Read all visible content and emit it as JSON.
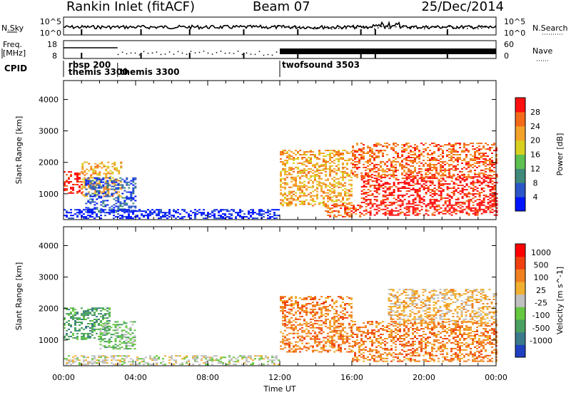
{
  "header": {
    "station": "Rankin Inlet (fitACF)",
    "beam": "Beam 07",
    "date": "25/Dec/2014"
  },
  "noise_panel": {
    "left_label": "N.Sky",
    "right_label": "N.Search",
    "left_ticks": [
      "10^5",
      "10^0"
    ],
    "right_ticks": [
      "10^5",
      "10^0"
    ]
  },
  "freq_panel": {
    "left_label_1": "Freq.",
    "left_label_2": "[MHz]",
    "left_ticks": [
      "18",
      "8"
    ],
    "right_label": "Nave",
    "right_ticks": [
      "60",
      "0"
    ]
  },
  "cpid": {
    "label": "CPID",
    "entries": [
      {
        "text": "rbsp 200",
        "hour": 0.15,
        "row": 0
      },
      {
        "text": "themis 3300",
        "hour": 0.15,
        "row": 1
      },
      {
        "text": "themis 3300",
        "hour": 3.0,
        "row": 1
      },
      {
        "text": "twofsound 3503",
        "hour": 12.0,
        "row": 0
      }
    ]
  },
  "x_axis": {
    "label": "Time UT",
    "ticks": [
      "00:00",
      "04:00",
      "08:00",
      "12:00",
      "16:00",
      "20:00",
      "00:00"
    ],
    "range_hours": [
      0,
      24
    ]
  },
  "power_panel": {
    "ylabel": "Slant Range [km]",
    "yticks": [
      "1000",
      "2000",
      "3000",
      "4000"
    ],
    "yrange_km": [
      180,
      4600
    ],
    "colorbar_label": "Power [dB]",
    "colorbar_ticks": [
      "4",
      "8",
      "12",
      "16",
      "20",
      "24",
      "28"
    ],
    "colors": [
      "#0015ff",
      "#2b56c8",
      "#3f8a7a",
      "#5ec050",
      "#d8d020",
      "#f3a22a",
      "#f36a18",
      "#ff1010"
    ]
  },
  "velocity_panel": {
    "ylabel": "Slant Range [km]",
    "yticks": [
      "1000",
      "2000",
      "3000",
      "4000"
    ],
    "yrange_km": [
      180,
      4600
    ],
    "colorbar_label": "Velocity [m s^-1]",
    "colorbar_ticks": [
      "1000",
      "500",
      "100",
      "25",
      "-25",
      "-100",
      "-500",
      "-1000"
    ],
    "colors": [
      "#2040c0",
      "#3a7a8a",
      "#4aa060",
      "#66c840",
      "#c0c0c0",
      "#f0b030",
      "#f08020",
      "#f04010",
      "#ff0000"
    ]
  },
  "chart_data": {
    "type": "heatmap",
    "x_unit": "hour UT",
    "y_unit": "slant range km",
    "power_regions": [
      {
        "t": [
          0.0,
          1.0
        ],
        "r": [
          1000,
          1700
        ],
        "level": 7
      },
      {
        "t": [
          1.0,
          3.2
        ],
        "r": [
          900,
          2000
        ],
        "level": 5
      },
      {
        "t": [
          1.2,
          4.0
        ],
        "r": [
          400,
          1500
        ],
        "level": 1
      },
      {
        "t": [
          0.0,
          12.0
        ],
        "r": [
          200,
          500
        ],
        "level": 0
      },
      {
        "t": [
          12.0,
          16.0
        ],
        "r": [
          600,
          2400
        ],
        "level": 5
      },
      {
        "t": [
          14.5,
          16.5
        ],
        "r": [
          250,
          700
        ],
        "level": 6
      },
      {
        "t": [
          16.5,
          24.0
        ],
        "r": [
          300,
          1600
        ],
        "level": 7
      },
      {
        "t": [
          16.0,
          24.0
        ],
        "r": [
          1500,
          2600
        ],
        "level": 6
      }
    ],
    "velocity_regions": [
      {
        "t": [
          0.0,
          2.5
        ],
        "r": [
          1000,
          2000
        ],
        "level": 2
      },
      {
        "t": [
          2.0,
          4.0
        ],
        "r": [
          700,
          1600
        ],
        "level": 3
      },
      {
        "t": [
          0.0,
          12.0
        ],
        "r": [
          200,
          500
        ],
        "level": 4
      },
      {
        "t": [
          12.0,
          16.0
        ],
        "r": [
          600,
          2400
        ],
        "level": 6
      },
      {
        "t": [
          16.0,
          24.0
        ],
        "r": [
          300,
          1600
        ],
        "level": 6
      },
      {
        "t": [
          18.0,
          24.0
        ],
        "r": [
          1500,
          2600
        ],
        "level": 5
      }
    ]
  }
}
